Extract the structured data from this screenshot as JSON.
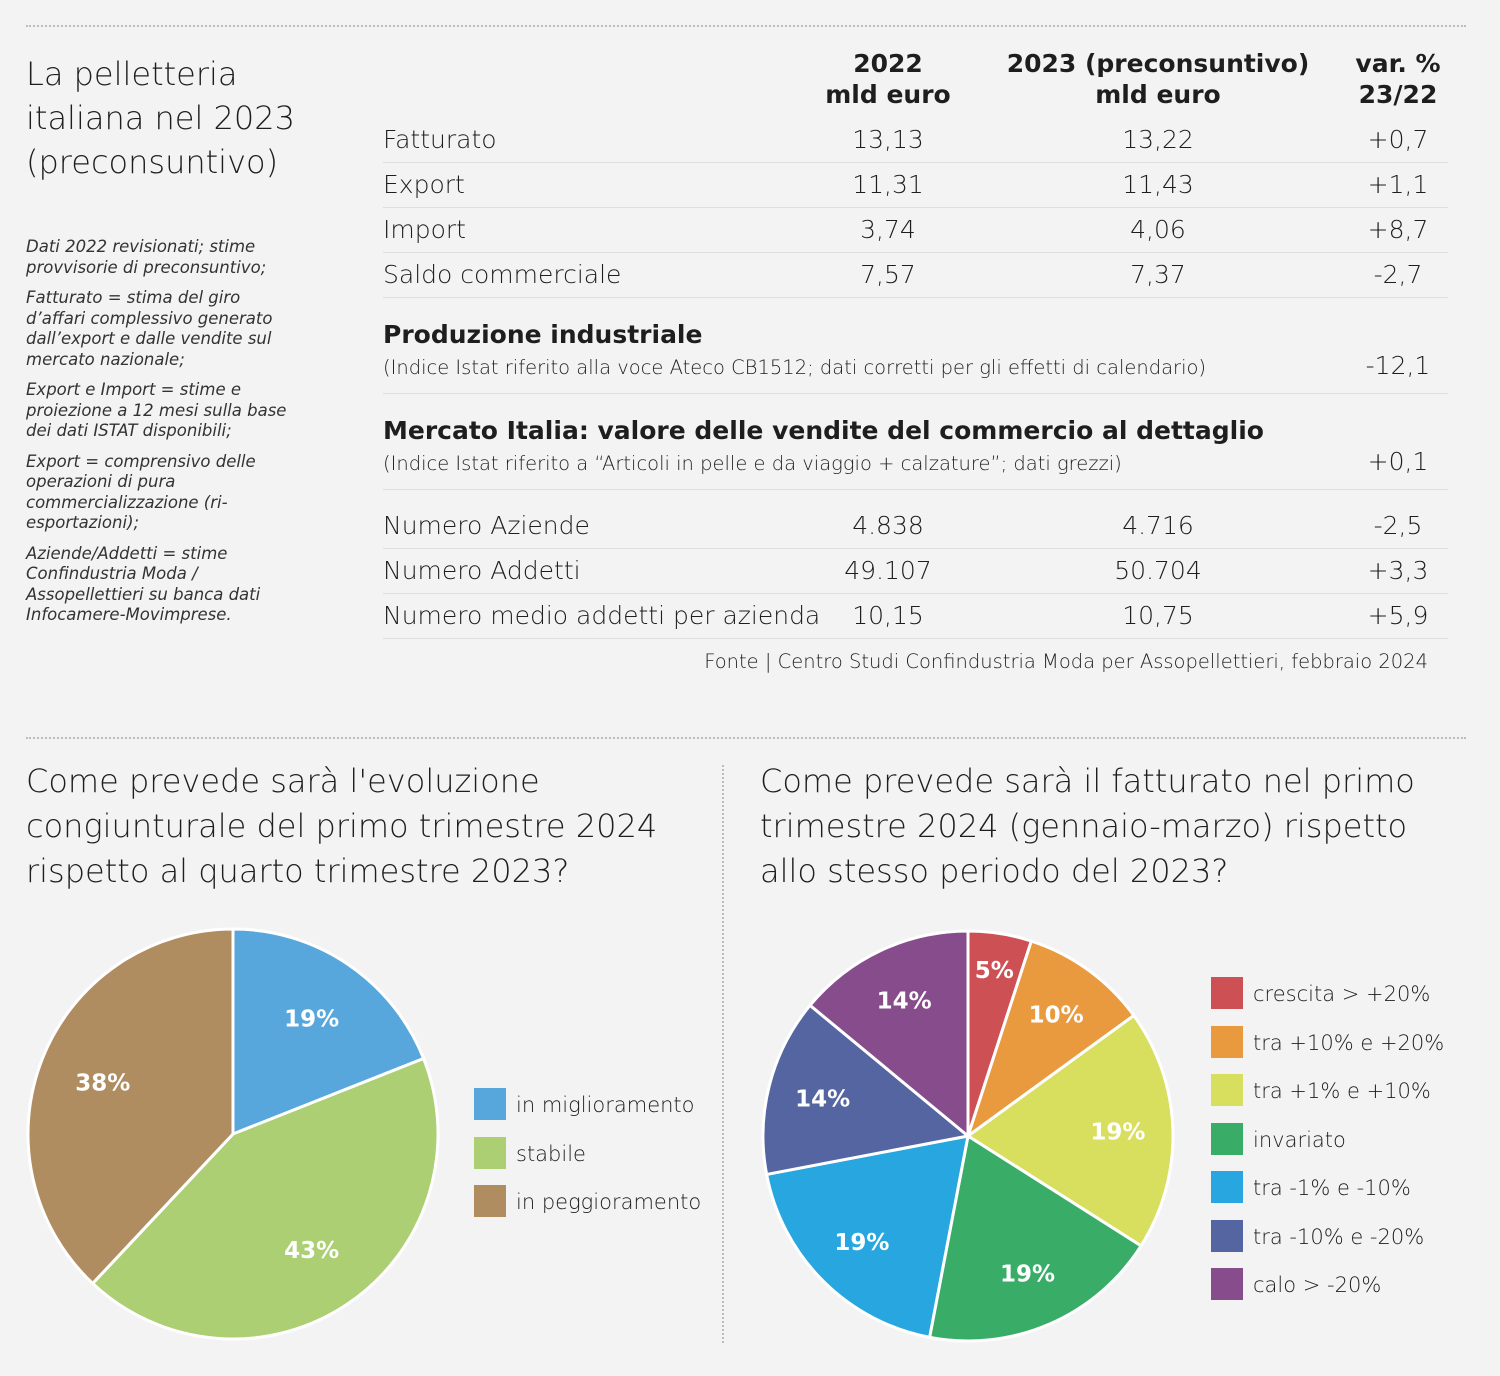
{
  "title": "La pelletteria italiana nel 2023 (preconsuntivo)",
  "notes": [
    "Dati 2022 revisionati; stime provvisorie di preconsuntivo;",
    "Fatturato = stima del giro d’affari complessivo generato dall’export e dalle vendite sul mercato nazionale;",
    "Export e Import = stime e proiezione a 12 mesi sulla base dei dati ISTAT disponibili;",
    "Export = comprensivo delle operazioni di pura commercializzazione (ri-esportazioni);",
    "Aziende/Addetti = stime Confindustria Moda / Assopellettieri su banca dati Infocamere-Movimprese."
  ],
  "table": {
    "headers": {
      "col2": "2022\nmld euro",
      "col3": "2023 (preconsuntivo)\nmld euro",
      "col4": "var. %\n23/22"
    },
    "rows_top": [
      {
        "label": "Fatturato",
        "v2022": "13,13",
        "v2023": "13,22",
        "var": "+0,7"
      },
      {
        "label": "Export",
        "v2022": "11,31",
        "v2023": "11,43",
        "var": "+1,1"
      },
      {
        "label": "Import",
        "v2022": "3,74",
        "v2023": "4,06",
        "var": "+8,7"
      },
      {
        "label": "Saldo commerciale",
        "v2022": "7,57",
        "v2023": "7,37",
        "var": "-2,7"
      }
    ],
    "section1": {
      "title": "Produzione industriale",
      "subtitle": "(Indice Istat riferito alla voce Ateco CB1512; dati corretti per gli effetti di calendario)",
      "var": "-12,1"
    },
    "section2": {
      "title": "Mercato Italia: valore delle vendite del commercio al dettaglio",
      "subtitle": "(Indice Istat riferito a “Articoli in pelle e da viaggio + calzature”; dati grezzi)",
      "var": "+0,1"
    },
    "rows_bottom": [
      {
        "label": "Numero Aziende",
        "v2022": "4.838",
        "v2023": "4.716",
        "var": "-2,5"
      },
      {
        "label": "Numero Addetti",
        "v2022": "49.107",
        "v2023": "50.704",
        "var": "+3,3"
      },
      {
        "label": "Numero medio addetti per azienda",
        "v2022": "10,15",
        "v2023": "10,75",
        "var": "+5,9"
      }
    ],
    "source": "Fonte | Centro Studi Confindustria Moda per Assopellettieri, febbraio 2024"
  },
  "chart_data": [
    {
      "type": "pie",
      "title": "Come prevede sarà l'evoluzione congiunturale del primo trimestre 2024 rispetto al quarto trimestre 2023?",
      "categories": [
        "in miglioramento",
        "stabile",
        "in peggioramento"
      ],
      "values": [
        19,
        43,
        38
      ],
      "labels": [
        "19%",
        "43%",
        "38%"
      ],
      "colors": [
        "#57a7dd",
        "#abcf72",
        "#b08d60"
      ],
      "legend_position": "right"
    },
    {
      "type": "pie",
      "title": "Come prevede sarà il fatturato nel primo trimestre 2024 (gennaio-marzo) rispetto allo stesso periodo del 2023?",
      "categories": [
        "crescita > +20%",
        "tra +10% e +20%",
        "tra +1% e +10%",
        "invariato",
        "tra -1% e -10%",
        "tra -10% e -20%",
        "calo > -20%"
      ],
      "values": [
        5,
        10,
        19,
        19,
        19,
        14,
        14
      ],
      "labels": [
        "5%",
        "10%",
        "19%",
        "19%",
        "19%",
        "14%",
        "14%"
      ],
      "colors": [
        "#cd5054",
        "#e99a3e",
        "#d8df5e",
        "#39ad68",
        "#28a6df",
        "#5565a1",
        "#864c8c"
      ],
      "legend_position": "right"
    }
  ]
}
